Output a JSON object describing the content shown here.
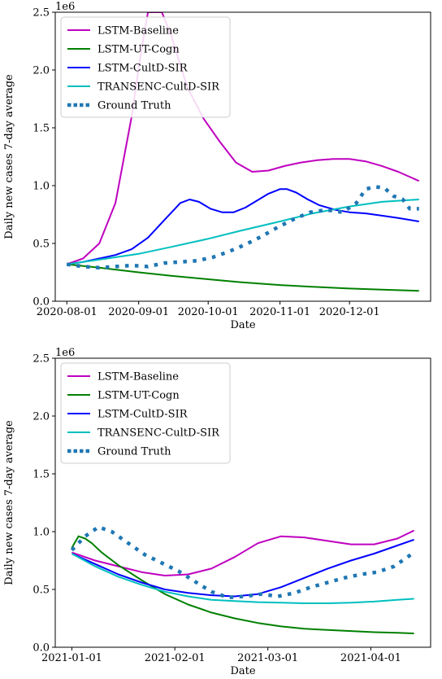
{
  "chart_data": [
    {
      "type": "line",
      "xlabel": "Date",
      "ylabel": "Daily new cases 7-day average",
      "y_offset_label": "1e6",
      "ylim": [
        0,
        2.5
      ],
      "yticks": [
        0.0,
        0.5,
        1.0,
        1.5,
        2.0,
        2.5
      ],
      "ytick_labels": [
        "0.0",
        "0.5",
        "1.0",
        "1.5",
        "2.0",
        "2.5"
      ],
      "xlim": [
        "2020-07-27",
        "2021-01-05"
      ],
      "xticks": [
        "2020-08-01",
        "2020-09-01",
        "2020-10-01",
        "2020-11-01",
        "2020-12-01"
      ],
      "xtick_labels": [
        "2020-08-01",
        "2020-09-01",
        "2020-10-01",
        "2020-11-01",
        "2020-12-01"
      ],
      "grid": false,
      "legend_position": "upper-left",
      "series": [
        {
          "name": "LSTM-Baseline",
          "color": "#bf00bf",
          "style": "solid",
          "x": [
            "2020-08-01",
            "2020-08-08",
            "2020-08-15",
            "2020-08-22",
            "2020-08-29",
            "2020-09-02",
            "2020-09-05",
            "2020-09-08",
            "2020-09-11",
            "2020-09-15",
            "2020-09-22",
            "2020-09-29",
            "2020-10-06",
            "2020-10-13",
            "2020-10-20",
            "2020-10-27",
            "2020-11-03",
            "2020-11-10",
            "2020-11-17",
            "2020-11-24",
            "2020-12-01",
            "2020-12-08",
            "2020-12-15",
            "2020-12-22",
            "2020-12-31"
          ],
          "y": [
            0.32,
            0.37,
            0.5,
            0.85,
            1.6,
            2.15,
            2.5,
            2.5,
            2.5,
            2.3,
            1.85,
            1.58,
            1.38,
            1.2,
            1.12,
            1.13,
            1.17,
            1.2,
            1.22,
            1.23,
            1.23,
            1.21,
            1.17,
            1.12,
            1.04
          ]
        },
        {
          "name": "LSTM-UT-Cogn",
          "color": "#008000",
          "style": "solid",
          "x": [
            "2020-08-01",
            "2020-08-15",
            "2020-09-01",
            "2020-09-15",
            "2020-10-01",
            "2020-10-15",
            "2020-11-01",
            "2020-11-15",
            "2020-12-01",
            "2020-12-15",
            "2020-12-31"
          ],
          "y": [
            0.32,
            0.29,
            0.25,
            0.22,
            0.19,
            0.165,
            0.14,
            0.125,
            0.11,
            0.1,
            0.09
          ]
        },
        {
          "name": "LSTM-CultD-SIR",
          "color": "#0000ff",
          "style": "solid",
          "x": [
            "2020-08-01",
            "2020-08-08",
            "2020-08-15",
            "2020-08-22",
            "2020-08-29",
            "2020-09-05",
            "2020-09-12",
            "2020-09-19",
            "2020-09-23",
            "2020-09-27",
            "2020-10-02",
            "2020-10-07",
            "2020-10-12",
            "2020-10-17",
            "2020-10-22",
            "2020-10-27",
            "2020-11-01",
            "2020-11-04",
            "2020-11-08",
            "2020-11-13",
            "2020-11-18",
            "2020-11-25",
            "2020-12-01",
            "2020-12-08",
            "2020-12-15",
            "2020-12-22",
            "2020-12-31"
          ],
          "y": [
            0.32,
            0.34,
            0.37,
            0.4,
            0.45,
            0.55,
            0.7,
            0.85,
            0.88,
            0.86,
            0.8,
            0.77,
            0.77,
            0.81,
            0.87,
            0.93,
            0.97,
            0.97,
            0.94,
            0.88,
            0.83,
            0.79,
            0.77,
            0.76,
            0.74,
            0.72,
            0.69
          ]
        },
        {
          "name": "TRANSENC-CultD-SIR",
          "color": "#00bfbf",
          "style": "solid",
          "x": [
            "2020-08-01",
            "2020-08-15",
            "2020-09-01",
            "2020-09-15",
            "2020-10-01",
            "2020-10-15",
            "2020-11-01",
            "2020-11-15",
            "2020-12-01",
            "2020-12-15",
            "2020-12-31"
          ],
          "y": [
            0.32,
            0.36,
            0.41,
            0.47,
            0.54,
            0.61,
            0.69,
            0.76,
            0.82,
            0.86,
            0.88
          ]
        },
        {
          "name": "Ground Truth",
          "color": "#1f77b4",
          "style": "dotted",
          "x": [
            "2020-08-01",
            "2020-08-08",
            "2020-08-15",
            "2020-08-22",
            "2020-08-29",
            "2020-09-05",
            "2020-09-12",
            "2020-09-19",
            "2020-09-26",
            "2020-10-03",
            "2020-10-10",
            "2020-10-17",
            "2020-10-24",
            "2020-10-31",
            "2020-11-07",
            "2020-11-14",
            "2020-11-21",
            "2020-11-28",
            "2020-12-04",
            "2020-12-08",
            "2020-12-12",
            "2020-12-16",
            "2020-12-20",
            "2020-12-24",
            "2020-12-27",
            "2020-12-31"
          ],
          "y": [
            0.32,
            0.3,
            0.29,
            0.3,
            0.31,
            0.3,
            0.33,
            0.34,
            0.35,
            0.38,
            0.43,
            0.49,
            0.56,
            0.64,
            0.71,
            0.77,
            0.79,
            0.77,
            0.85,
            0.97,
            0.99,
            0.98,
            0.91,
            0.88,
            0.8,
            0.8
          ]
        }
      ]
    },
    {
      "type": "line",
      "xlabel": "Date",
      "ylabel": "Daily new cases 7-day average",
      "y_offset_label": "1e6",
      "ylim": [
        0,
        2.5
      ],
      "yticks": [
        0.0,
        0.5,
        1.0,
        1.5,
        2.0,
        2.5
      ],
      "ytick_labels": [
        "0.0",
        "0.5",
        "1.0",
        "1.5",
        "2.0",
        "2.5"
      ],
      "xlim": [
        "2020-12-27",
        "2021-04-19"
      ],
      "xticks": [
        "2021-01-01",
        "2021-02-01",
        "2021-03-01",
        "2021-04-01"
      ],
      "xtick_labels": [
        "2021-01-01",
        "2021-02-01",
        "2021-03-01",
        "2021-04-01"
      ],
      "grid": false,
      "legend_position": "upper-left",
      "series": [
        {
          "name": "LSTM-Baseline",
          "color": "#bf00bf",
          "style": "solid",
          "x": [
            "2021-01-01",
            "2021-01-08",
            "2021-01-15",
            "2021-01-22",
            "2021-01-29",
            "2021-02-05",
            "2021-02-12",
            "2021-02-19",
            "2021-02-26",
            "2021-03-05",
            "2021-03-12",
            "2021-03-19",
            "2021-03-26",
            "2021-04-02",
            "2021-04-09",
            "2021-04-14"
          ],
          "y": [
            0.82,
            0.75,
            0.7,
            0.65,
            0.62,
            0.63,
            0.68,
            0.78,
            0.9,
            0.96,
            0.95,
            0.92,
            0.89,
            0.89,
            0.94,
            1.01
          ]
        },
        {
          "name": "LSTM-UT-Cogn",
          "color": "#008000",
          "style": "solid",
          "x": [
            "2021-01-01",
            "2021-01-03",
            "2021-01-05",
            "2021-01-07",
            "2021-01-10",
            "2021-01-15",
            "2021-01-22",
            "2021-01-29",
            "2021-02-05",
            "2021-02-12",
            "2021-02-19",
            "2021-02-26",
            "2021-03-05",
            "2021-03-12",
            "2021-03-19",
            "2021-03-26",
            "2021-04-02",
            "2021-04-09",
            "2021-04-14"
          ],
          "y": [
            0.86,
            0.96,
            0.94,
            0.9,
            0.82,
            0.71,
            0.58,
            0.46,
            0.37,
            0.3,
            0.25,
            0.21,
            0.18,
            0.16,
            0.15,
            0.14,
            0.13,
            0.125,
            0.12
          ]
        },
        {
          "name": "LSTM-CultD-SIR",
          "color": "#0000ff",
          "style": "solid",
          "x": [
            "2021-01-01",
            "2021-01-08",
            "2021-01-15",
            "2021-01-22",
            "2021-01-29",
            "2021-02-05",
            "2021-02-12",
            "2021-02-19",
            "2021-02-26",
            "2021-03-05",
            "2021-03-12",
            "2021-03-19",
            "2021-03-26",
            "2021-04-02",
            "2021-04-09",
            "2021-04-14"
          ],
          "y": [
            0.81,
            0.72,
            0.63,
            0.56,
            0.5,
            0.47,
            0.45,
            0.44,
            0.46,
            0.52,
            0.6,
            0.68,
            0.75,
            0.81,
            0.88,
            0.93
          ]
        },
        {
          "name": "TRANSENC-CultD-SIR",
          "color": "#00bfbf",
          "style": "solid",
          "x": [
            "2021-01-01",
            "2021-01-08",
            "2021-01-15",
            "2021-01-22",
            "2021-01-29",
            "2021-02-05",
            "2021-02-12",
            "2021-02-19",
            "2021-02-26",
            "2021-03-05",
            "2021-03-12",
            "2021-03-19",
            "2021-03-26",
            "2021-04-02",
            "2021-04-09",
            "2021-04-14"
          ],
          "y": [
            0.81,
            0.7,
            0.61,
            0.54,
            0.48,
            0.44,
            0.41,
            0.4,
            0.39,
            0.385,
            0.38,
            0.38,
            0.385,
            0.395,
            0.41,
            0.42
          ]
        },
        {
          "name": "Ground Truth",
          "color": "#1f77b4",
          "style": "dotted",
          "x": [
            "2021-01-01",
            "2021-01-05",
            "2021-01-09",
            "2021-01-13",
            "2021-01-18",
            "2021-01-23",
            "2021-01-28",
            "2021-02-02",
            "2021-02-07",
            "2021-02-12",
            "2021-02-17",
            "2021-02-22",
            "2021-02-27",
            "2021-03-04",
            "2021-03-09",
            "2021-03-14",
            "2021-03-19",
            "2021-03-24",
            "2021-03-29",
            "2021-04-03",
            "2021-04-08",
            "2021-04-14"
          ],
          "y": [
            0.84,
            0.96,
            1.04,
            1.0,
            0.9,
            0.8,
            0.73,
            0.66,
            0.57,
            0.48,
            0.43,
            0.44,
            0.46,
            0.44,
            0.47,
            0.52,
            0.56,
            0.6,
            0.63,
            0.65,
            0.7,
            0.82
          ]
        }
      ]
    }
  ]
}
